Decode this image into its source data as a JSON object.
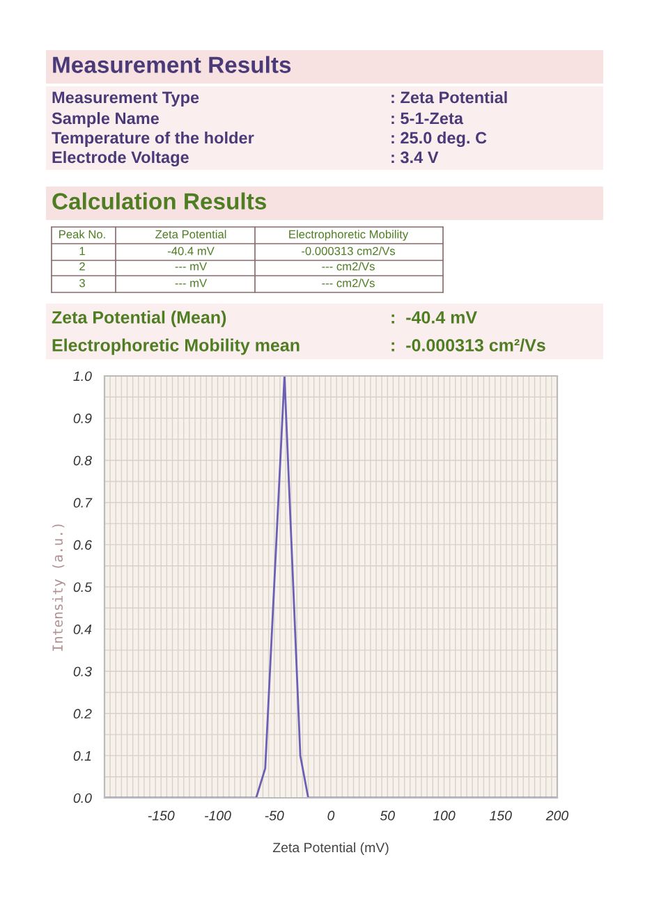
{
  "chart_data": {
    "type": "line",
    "title": "Measurement Results",
    "subtitle": "Calculation Results",
    "annotations": [
      "Measurement Type",
      ": Zeta Potential",
      "Sample Name",
      ": 5-1-Zeta",
      "Temperature of the holder",
      ": 25.0 deg. C",
      "Electrode Voltage",
      ": 3.4 V",
      "Peak No.",
      "Zeta Potential",
      "Electrophoretic Mobility",
      "1",
      "-40.4 mV",
      "-0.000313 cm2/Vs",
      "2",
      "--- mV",
      "--- cm2/Vs",
      "3",
      "--- mV",
      "--- cm2/Vs",
      "Zeta Potential (Mean)",
      ":  -40.4 mV",
      "Electrophoretic Mobility mean",
      ":  -0.000313 cm²/Vs"
    ],
    "xlabel": "Zeta Potential (mV)",
    "ylabel": "Intensity (a.u.)",
    "x": [
      -200,
      -66,
      -58,
      -41,
      -27,
      -20,
      200
    ],
    "series": [
      {
        "color": "#6b5fb5",
        "values": [
          0,
          0,
          0.07,
          1.0,
          0.1,
          0,
          0
        ]
      }
    ],
    "xlim": [
      -200,
      200
    ],
    "xticks": [
      -150,
      -100,
      -50,
      0,
      50,
      100,
      150,
      200
    ],
    "ylim": [
      0,
      1
    ],
    "yticks": [
      {
        "value": 0,
        "label": "0.0"
      },
      0.1,
      0.2,
      0.3,
      0.4,
      0.5,
      0.6,
      0.7,
      0.8,
      0.9,
      {
        "value": 1,
        "label": "1.0"
      }
    ],
    "grid": true,
    "marker": "none",
    "line_style": "solid",
    "legend": false
  }
}
